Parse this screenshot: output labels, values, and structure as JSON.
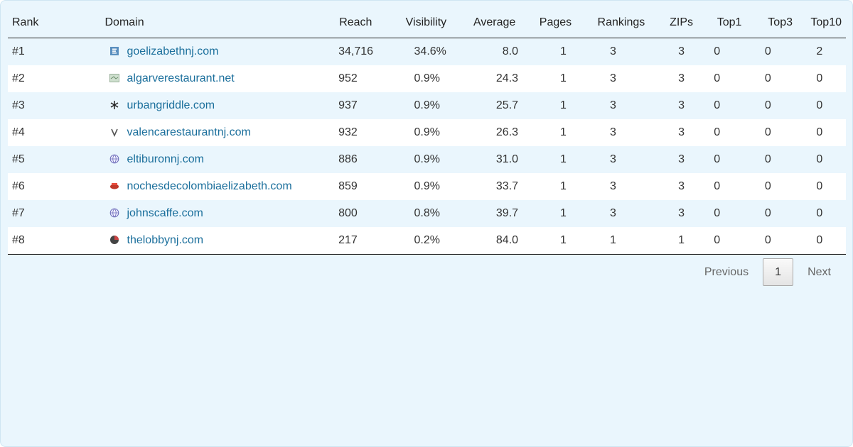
{
  "columns": [
    "Rank",
    "Domain",
    "Reach",
    "Visibility",
    "Average",
    "Pages",
    "Rankings",
    "ZIPs",
    "Top1",
    "Top3",
    "Top10"
  ],
  "rows": [
    {
      "rank": "#1",
      "domain": "goelizabethnj.com",
      "icon": "document-icon",
      "reach": "34,716",
      "visibility": "34.6%",
      "average": "8.0",
      "pages": "1",
      "rankings": "3",
      "zips": "3",
      "top1": "0",
      "top3": "0",
      "top10": "2"
    },
    {
      "rank": "#2",
      "domain": "algarverestaurant.net",
      "icon": "image-thumb-icon",
      "reach": "952",
      "visibility": "0.9%",
      "average": "24.3",
      "pages": "1",
      "rankings": "3",
      "zips": "3",
      "top1": "0",
      "top3": "0",
      "top10": "0"
    },
    {
      "rank": "#3",
      "domain": "urbangriddle.com",
      "icon": "star-logo-icon",
      "reach": "937",
      "visibility": "0.9%",
      "average": "25.7",
      "pages": "1",
      "rankings": "3",
      "zips": "3",
      "top1": "0",
      "top3": "0",
      "top10": "0"
    },
    {
      "rank": "#4",
      "domain": "valencarestaurantnj.com",
      "icon": "v-logo-icon",
      "reach": "932",
      "visibility": "0.9%",
      "average": "26.3",
      "pages": "1",
      "rankings": "3",
      "zips": "3",
      "top1": "0",
      "top3": "0",
      "top10": "0"
    },
    {
      "rank": "#5",
      "domain": "eltiburonnj.com",
      "icon": "globe-icon",
      "reach": "886",
      "visibility": "0.9%",
      "average": "31.0",
      "pages": "1",
      "rankings": "3",
      "zips": "3",
      "top1": "0",
      "top3": "0",
      "top10": "0"
    },
    {
      "rank": "#6",
      "domain": "nochesdecolombiaelizabeth.com",
      "icon": "red-logo-icon",
      "reach": "859",
      "visibility": "0.9%",
      "average": "33.7",
      "pages": "1",
      "rankings": "3",
      "zips": "3",
      "top1": "0",
      "top3": "0",
      "top10": "0"
    },
    {
      "rank": "#7",
      "domain": "johnscaffe.com",
      "icon": "globe-icon",
      "reach": "800",
      "visibility": "0.8%",
      "average": "39.7",
      "pages": "1",
      "rankings": "3",
      "zips": "3",
      "top1": "0",
      "top3": "0",
      "top10": "0"
    },
    {
      "rank": "#8",
      "domain": "thelobbynj.com",
      "icon": "circle-logo-icon",
      "reach": "217",
      "visibility": "0.2%",
      "average": "84.0",
      "pages": "1",
      "rankings": "1",
      "zips": "1",
      "top1": "0",
      "top3": "0",
      "top10": "0"
    }
  ],
  "pagination": {
    "previous": "Previous",
    "current": "1",
    "next": "Next"
  },
  "colors": {
    "panel": "#eaf6fd",
    "link": "#1b6f9c",
    "stripe": "#eaf6fd"
  }
}
